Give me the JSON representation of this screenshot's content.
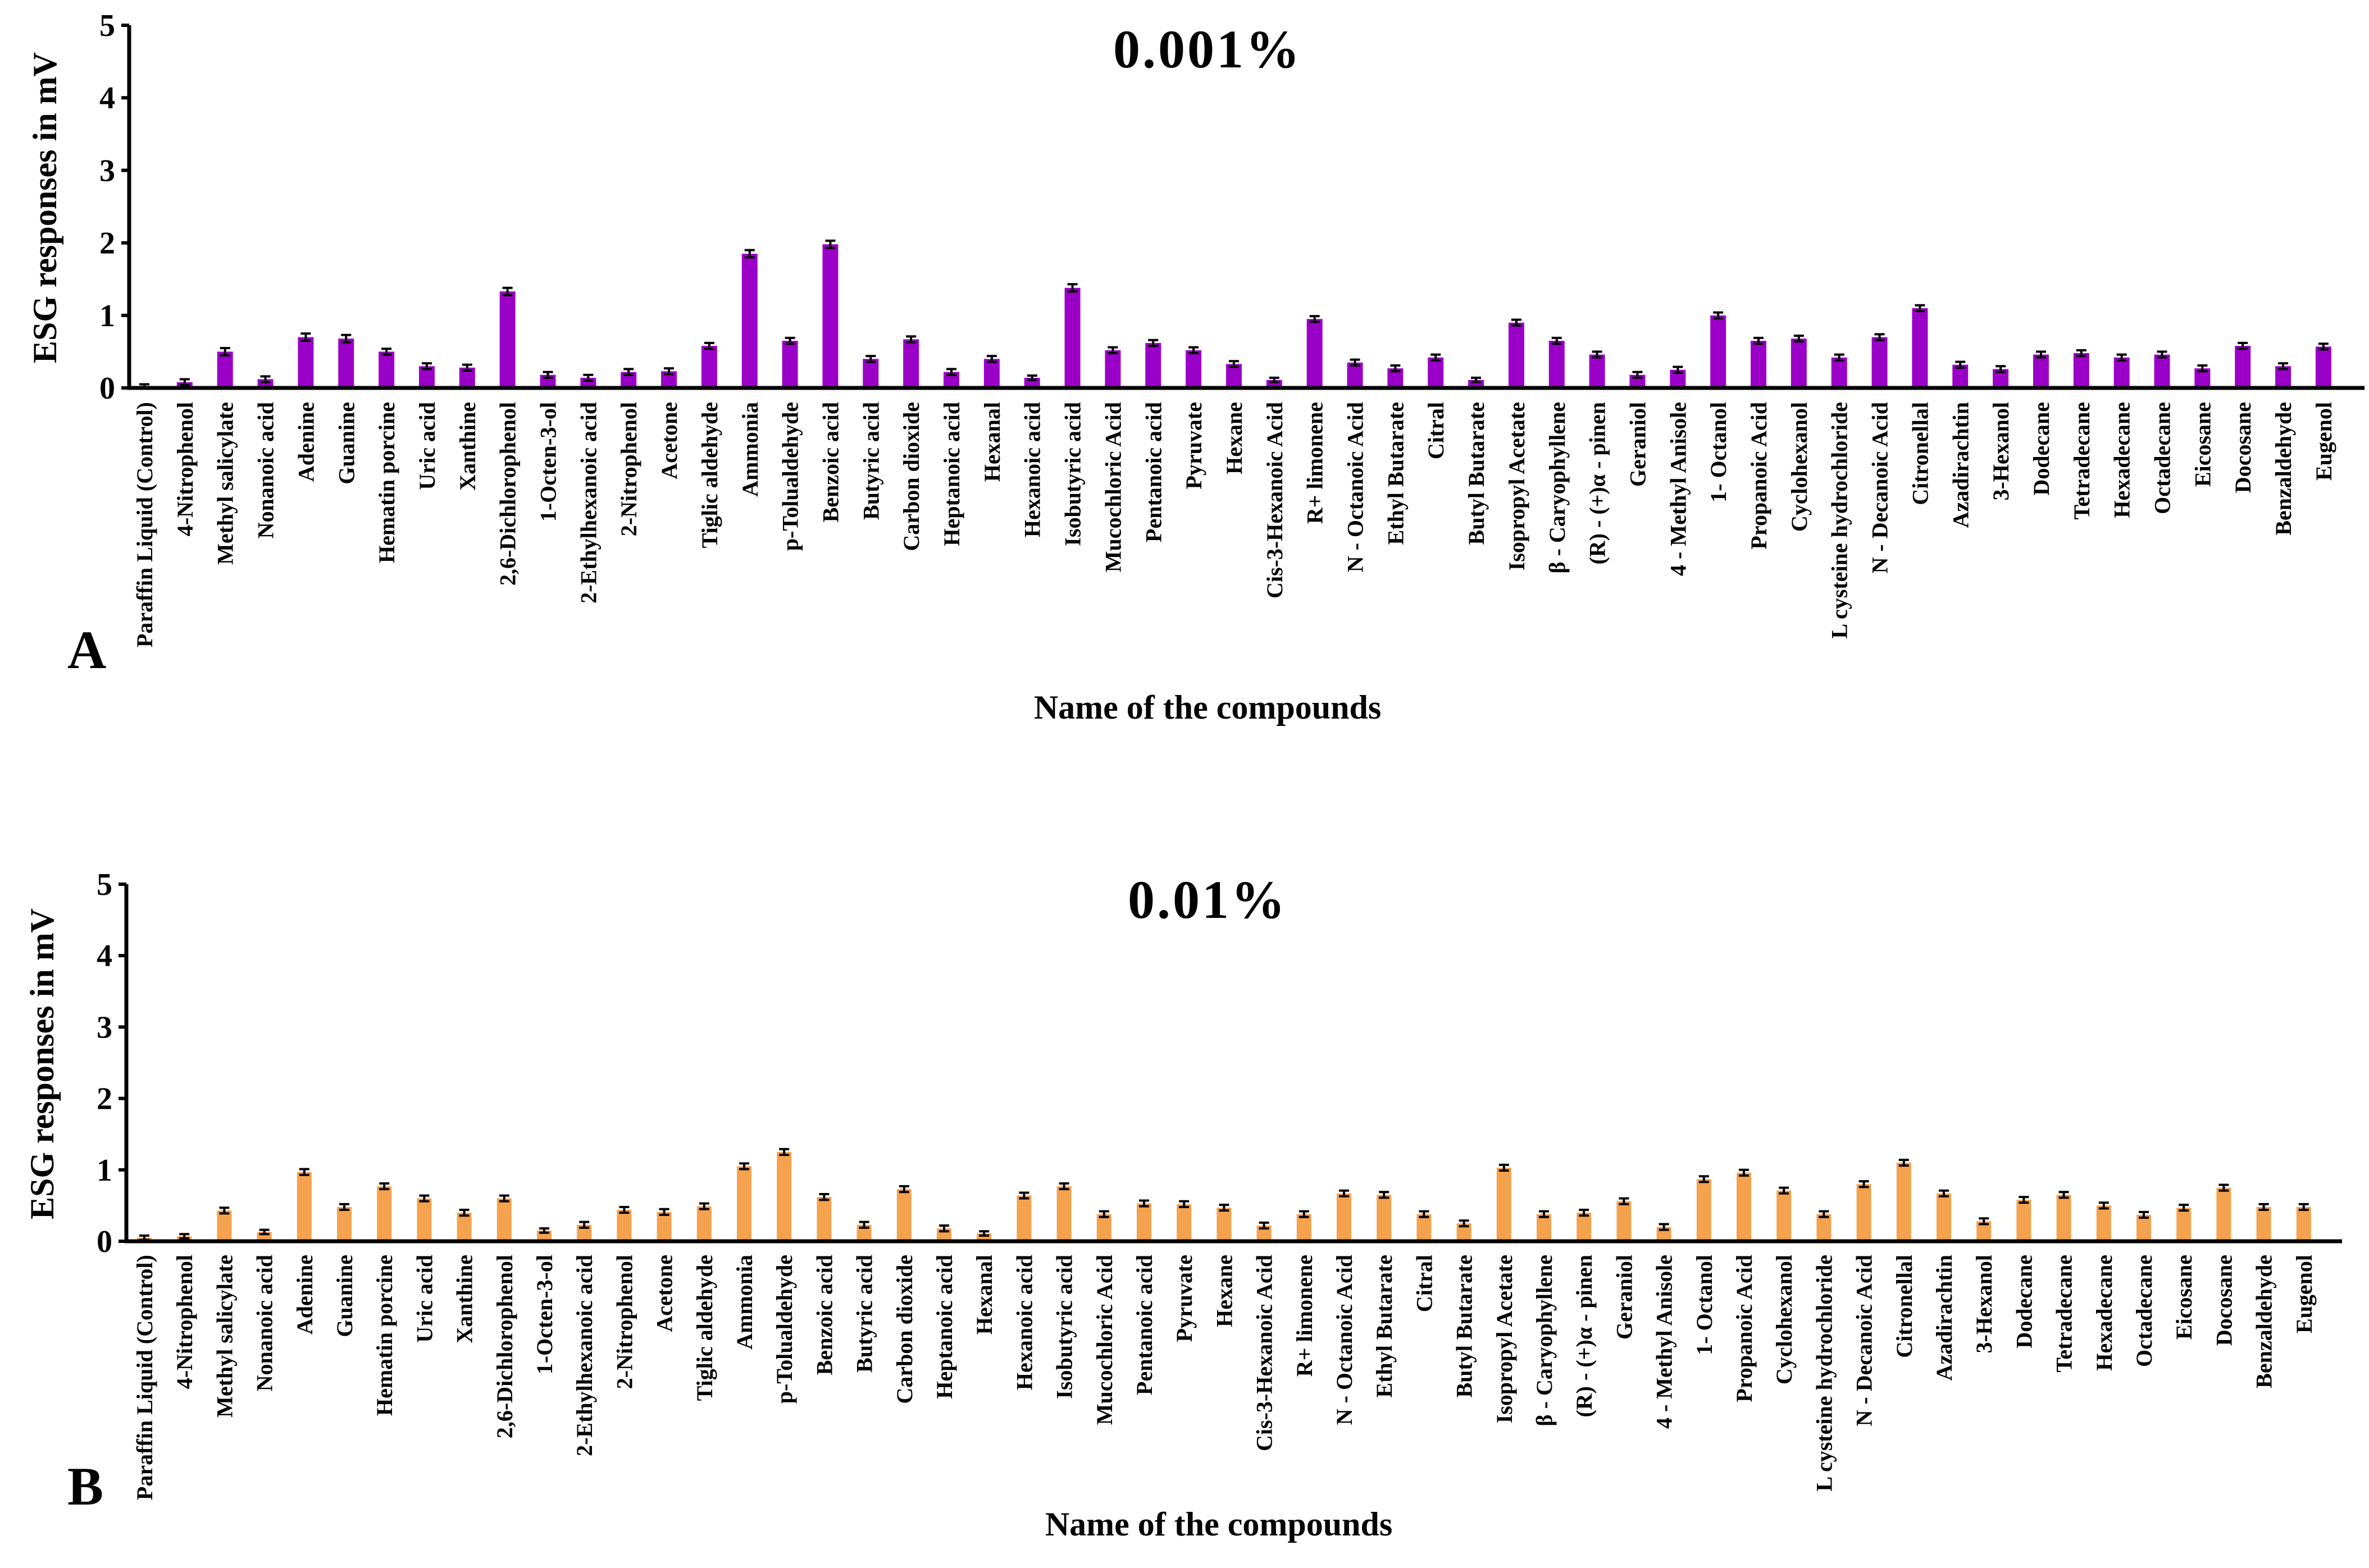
{
  "chart_data": [
    {
      "type": "bar",
      "panel_letter": "A",
      "title": "0.001%",
      "xlabel": "Name of the compounds",
      "ylabel": "ESG responses in mV",
      "ylim": [
        0,
        5
      ],
      "yticks": [
        "0",
        "1",
        "2",
        "3",
        "4",
        "5"
      ],
      "bar_color": "#9b00c8",
      "categories": [
        "Paraffin Liquid (Control)",
        "4-Nitrophenol",
        "Methyl salicylate",
        "Nonanoic acid",
        "Adenine",
        "Guanine",
        "Hematin porcine",
        "Uric acid",
        "Xanthine",
        "2,6-Dichlorophenol",
        "1-Octen-3-ol",
        "2-Ethylhexanoic acid",
        "2-Nitrophenol",
        "Acetone",
        "Tiglic aldehyde",
        "Ammonia",
        "p-Tolualdehyde",
        "Benzoic acid",
        "Butyric acid",
        "Carbon dioxide",
        "Heptanoic acid",
        "Hexanal",
        "Hexanoic acid",
        "Isobutyric acid",
        "Mucochloric Acid",
        "Pentanoic acid",
        "Pyruvate",
        "Hexane",
        "Cis-3-Hexanoic Acid",
        "R+ limonene",
        "N - Octanoic Acid",
        "Ethyl Butarate",
        "Citral",
        "Butyl Butarate",
        "Isopropyl Acetate",
        "β - Caryophyllene",
        "(R) - (+)α - pinen",
        "Geraniol",
        "4 - Methyl Anisole",
        "1- Octanol",
        "Propanoic Acid",
        "Cyclohexanol",
        "L cysteine hydrochloride",
        "N - Decanoic Acid",
        "Citronellal",
        "Azadirachtin",
        "3-Hexanol",
        "Dodecane",
        "Tetradecane",
        "Hexadecane",
        "Octadecane",
        "Eicosane",
        "Docosane",
        "Benzaldehyde",
        "Eugenol"
      ],
      "values": [
        0.02,
        0.08,
        0.5,
        0.12,
        0.7,
        0.68,
        0.5,
        0.3,
        0.28,
        1.33,
        0.18,
        0.14,
        0.22,
        0.23,
        0.58,
        1.85,
        0.65,
        1.98,
        0.4,
        0.67,
        0.22,
        0.4,
        0.14,
        1.38,
        0.52,
        0.62,
        0.52,
        0.33,
        0.11,
        0.95,
        0.35,
        0.27,
        0.42,
        0.11,
        0.9,
        0.65,
        0.46,
        0.18,
        0.25,
        1.0,
        0.65,
        0.68,
        0.42,
        0.7,
        1.1,
        0.32,
        0.26,
        0.46,
        0.48,
        0.42,
        0.46,
        0.27,
        0.58,
        0.3,
        0.57
      ],
      "errors": [
        0.03,
        0.04,
        0.05,
        0.04,
        0.05,
        0.05,
        0.04,
        0.04,
        0.04,
        0.05,
        0.04,
        0.04,
        0.04,
        0.04,
        0.04,
        0.05,
        0.04,
        0.05,
        0.04,
        0.04,
        0.04,
        0.04,
        0.03,
        0.05,
        0.04,
        0.04,
        0.04,
        0.04,
        0.03,
        0.04,
        0.04,
        0.04,
        0.04,
        0.03,
        0.04,
        0.04,
        0.04,
        0.04,
        0.04,
        0.04,
        0.04,
        0.04,
        0.04,
        0.04,
        0.04,
        0.04,
        0.04,
        0.04,
        0.04,
        0.04,
        0.04,
        0.04,
        0.04,
        0.04,
        0.04
      ]
    },
    {
      "type": "bar",
      "panel_letter": "B",
      "title": "0.01%",
      "xlabel": "Name of the compounds",
      "ylabel": "ESG responses in mV",
      "ylim": [
        0,
        5
      ],
      "yticks": [
        "0",
        "1",
        "2",
        "3",
        "4",
        "5"
      ],
      "bar_color": "#f4a24e",
      "categories": [
        "Paraffin Liquid (Control)",
        "4-Nitrophenol",
        "Methyl salicylate",
        "Nonanoic acid",
        "Adenine",
        "Guanine",
        "Hematin porcine",
        "Uric acid",
        "Xanthine",
        "2,6-Dichlorophenol",
        "1-Octen-3-ol",
        "2-Ethylhexanoic acid",
        "2-Nitrophenol",
        "Acetone",
        "Tiglic aldehyde",
        "Ammonia",
        "p-Tolualdehyde",
        "Benzoic acid",
        "Butyric acid",
        "Carbon dioxide",
        "Heptanoic acid",
        "Hexanal",
        "Hexanoic acid",
        "Isobutyric acid",
        "Mucochloric Acid",
        "Pentanoic acid",
        "Pyruvate",
        "Hexane",
        "Cis-3-Hexanoic Acid",
        "R+ limonene",
        "N - Octanoic Acid",
        "Ethyl Butarate",
        "Citral",
        "Butyl Butarate",
        "Isopropyl Acetate",
        "β - Caryophyllene",
        "(R) - (+)α - pinen",
        "Geraniol",
        "4 - Methyl Anisole",
        "1- Octanol",
        "Propanoic Acid",
        "Cyclohexanol",
        "L cysteine hydrochloride",
        "N - Decanoic Acid",
        "Citronellal",
        "Azadirachtin",
        "3-Hexanol",
        "Dodecane",
        "Tetradecane",
        "Hexadecane",
        "Octadecane",
        "Eicosane",
        "Docosane",
        "Benzaldehyde",
        "Eugenol"
      ],
      "values": [
        0.05,
        0.07,
        0.43,
        0.13,
        0.97,
        0.48,
        0.77,
        0.6,
        0.4,
        0.6,
        0.15,
        0.23,
        0.44,
        0.41,
        0.49,
        1.05,
        1.25,
        0.62,
        0.23,
        0.73,
        0.18,
        0.11,
        0.64,
        0.77,
        0.38,
        0.53,
        0.52,
        0.47,
        0.22,
        0.38,
        0.67,
        0.65,
        0.38,
        0.25,
        1.03,
        0.38,
        0.4,
        0.56,
        0.2,
        0.87,
        0.96,
        0.71,
        0.38,
        0.8,
        1.1,
        0.67,
        0.28,
        0.58,
        0.65,
        0.5,
        0.37,
        0.47,
        0.75,
        0.48,
        0.48
      ],
      "errors": [
        0.03,
        0.03,
        0.04,
        0.03,
        0.04,
        0.04,
        0.04,
        0.04,
        0.04,
        0.04,
        0.03,
        0.04,
        0.04,
        0.04,
        0.04,
        0.04,
        0.04,
        0.04,
        0.04,
        0.04,
        0.04,
        0.03,
        0.04,
        0.04,
        0.04,
        0.04,
        0.04,
        0.04,
        0.04,
        0.04,
        0.04,
        0.04,
        0.04,
        0.04,
        0.04,
        0.04,
        0.04,
        0.04,
        0.04,
        0.04,
        0.04,
        0.04,
        0.04,
        0.04,
        0.04,
        0.04,
        0.04,
        0.04,
        0.04,
        0.04,
        0.04,
        0.04,
        0.04,
        0.04,
        0.04
      ]
    }
  ]
}
